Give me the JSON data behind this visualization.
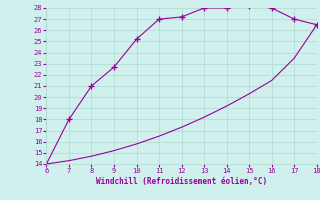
{
  "upper_x": [
    6,
    7,
    8,
    9,
    10,
    11,
    12,
    13,
    14,
    15,
    16,
    17,
    18
  ],
  "upper_y": [
    14.0,
    18.0,
    21.0,
    22.7,
    25.2,
    27.0,
    27.2,
    28.0,
    28.0,
    28.2,
    28.0,
    27.0,
    26.5
  ],
  "lower_x": [
    6,
    7,
    8,
    9,
    10,
    11,
    12,
    13,
    14,
    15,
    16,
    17,
    18
  ],
  "lower_y": [
    14.0,
    14.3,
    14.7,
    15.2,
    15.8,
    16.5,
    17.3,
    18.2,
    19.2,
    20.3,
    21.5,
    23.5,
    26.5
  ],
  "line_color": "#990099",
  "bg_color": "#d0f0ee",
  "grid_color": "#b0d8d0",
  "axis_color": "#990099",
  "xlabel": "Windchill (Refroidissement éolien,°C)",
  "xlim": [
    6,
    18
  ],
  "ylim": [
    14,
    28
  ],
  "xticks": [
    6,
    7,
    8,
    9,
    10,
    11,
    12,
    13,
    14,
    15,
    16,
    17,
    18
  ],
  "yticks": [
    14,
    15,
    16,
    17,
    18,
    19,
    20,
    21,
    22,
    23,
    24,
    25,
    26,
    27,
    28
  ],
  "marker": "+",
  "marker_size": 4,
  "linewidth": 0.8
}
